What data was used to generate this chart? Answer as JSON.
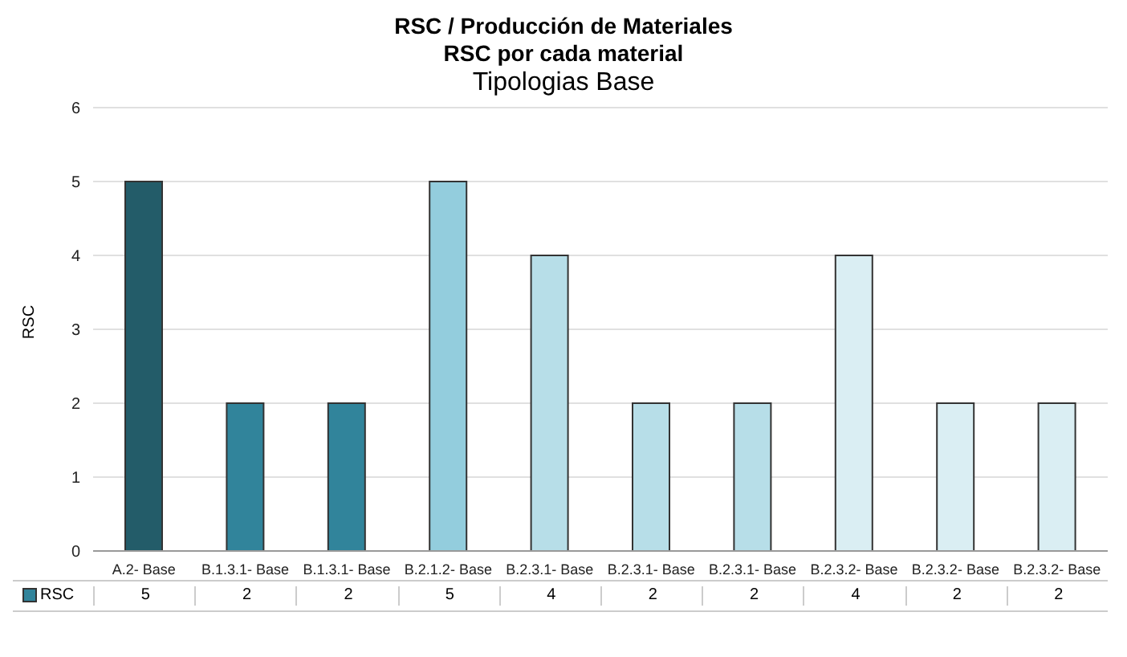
{
  "chart_data": {
    "type": "bar",
    "title": "RSC / Producción de Materiales",
    "subtitle": "RSC por cada material",
    "annotations": [
      "Tipologias Base"
    ],
    "ylabel": "RSC",
    "categories": [
      "A.2- Base",
      "B.1.3.1- Base",
      "B.1.3.1- Base",
      "B.2.1.2- Base",
      "B.2.3.1- Base",
      "B.2.3.1- Base",
      "B.2.3.1- Base",
      "B.2.3.2- Base",
      "B.2.3.2- Base",
      "B.2.3.2- Base"
    ],
    "series": [
      {
        "name": "RSC",
        "color": "#31849b",
        "colors": [
          "#235c69",
          "#31849b",
          "#31849b",
          "#93cddd",
          "#b7dee8",
          "#b7dee8",
          "#b7dee8",
          "#daeef3",
          "#daeef3",
          "#daeef3"
        ],
        "values": [
          5,
          2,
          2,
          5,
          4,
          2,
          2,
          4,
          2,
          2
        ]
      }
    ],
    "ylim": [
      0,
      6
    ],
    "yticks": [
      0,
      1,
      2,
      3,
      4,
      5,
      6
    ],
    "grid": "y",
    "legend": "bottom left",
    "data_labels": true
  }
}
